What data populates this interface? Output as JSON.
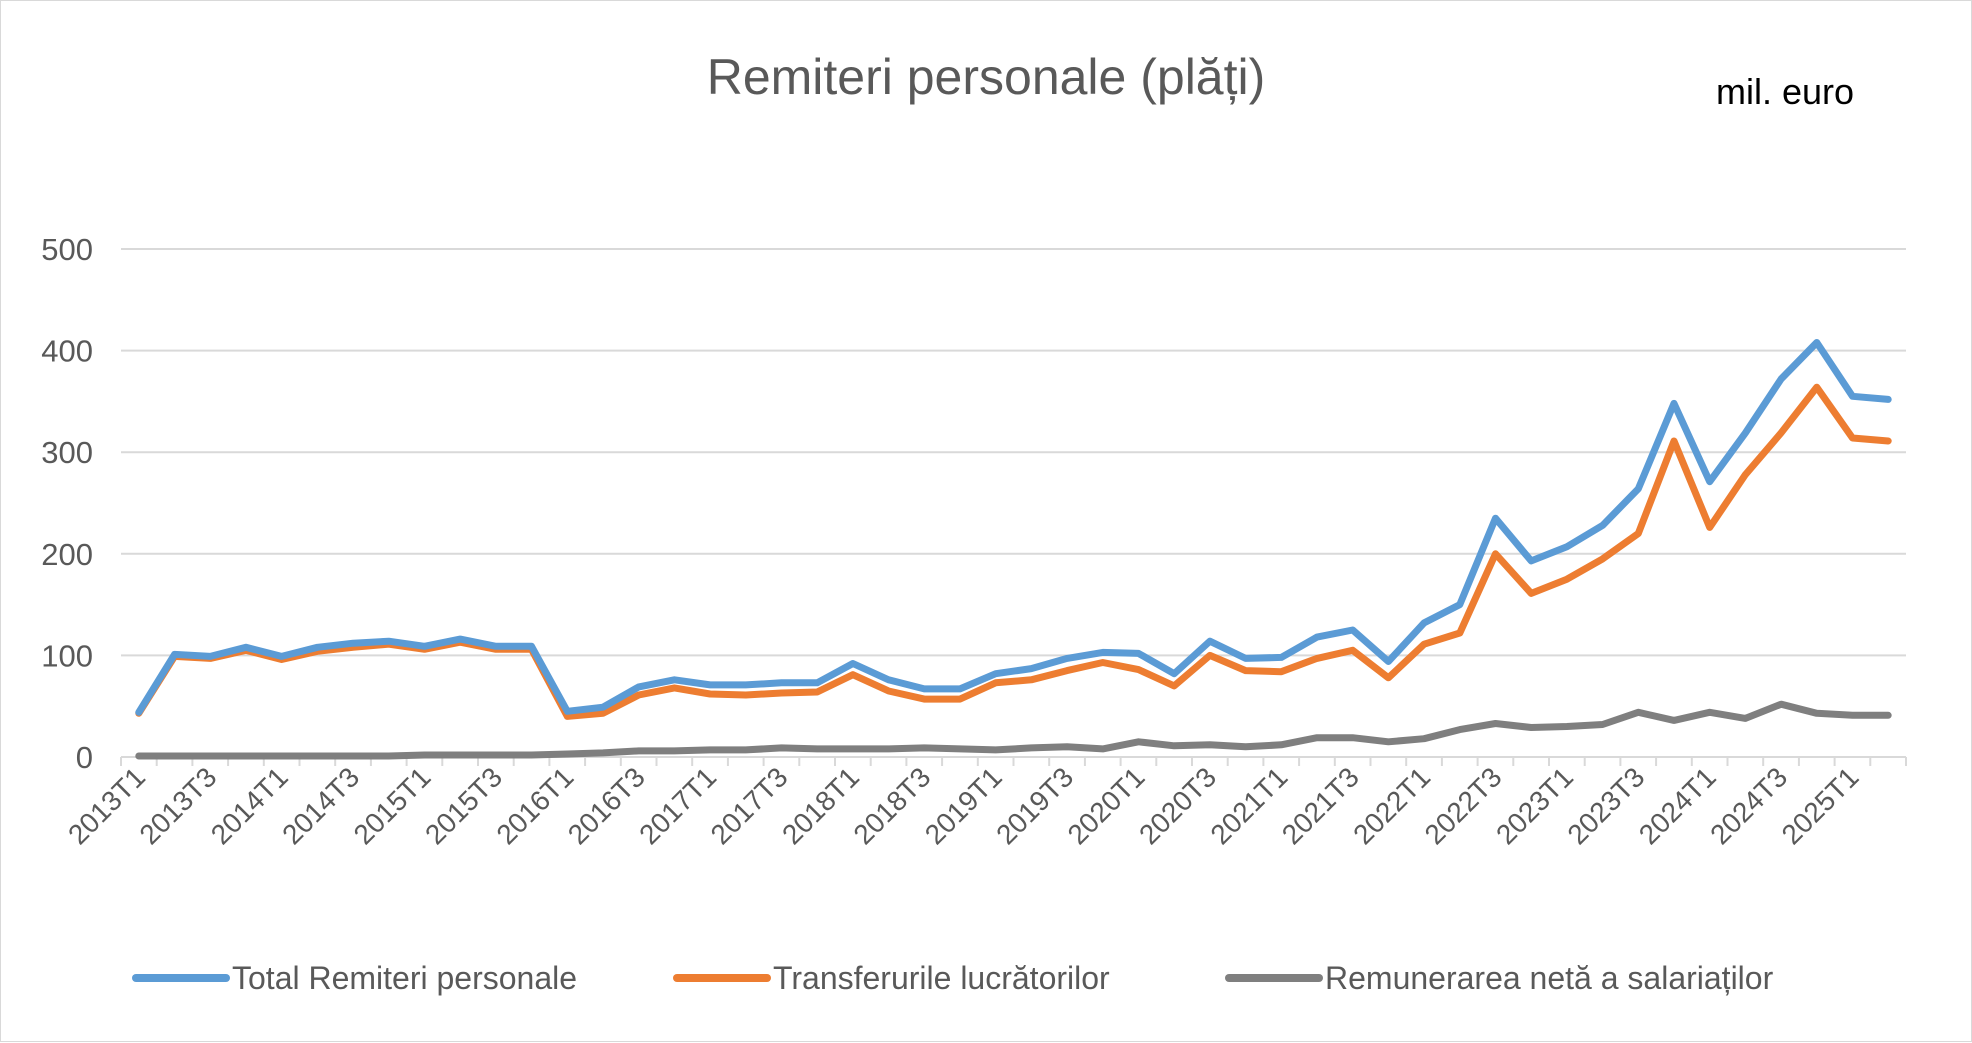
{
  "chart_data": {
    "type": "line",
    "title": "Remiteri personale (plăți)",
    "unit_label": "mil. euro",
    "xlabel": "",
    "ylabel": "",
    "ylim": [
      0,
      500
    ],
    "yticks": [
      "0",
      "100",
      "200",
      "300",
      "400",
      "500"
    ],
    "grid": true,
    "legend_position": "bottom",
    "categories": [
      "2013T1",
      "2013T2",
      "2013T3",
      "2013T4",
      "2014T1",
      "2014T2",
      "2014T3",
      "2014T4",
      "2015T1",
      "2015T2",
      "2015T3",
      "2015T4",
      "2016T1",
      "2016T2",
      "2016T3",
      "2016T4",
      "2017T1",
      "2017T2",
      "2017T3",
      "2017T4",
      "2018T1",
      "2018T2",
      "2018T3",
      "2018T4",
      "2019T1",
      "2019T2",
      "2019T3",
      "2019T4",
      "2020T1",
      "2020T2",
      "2020T3",
      "2020T4",
      "2021T1",
      "2021T2",
      "2021T3",
      "2021T4",
      "2022T1",
      "2022T2",
      "2022T3",
      "2022T4",
      "2023T1",
      "2023T2",
      "2023T3",
      "2023T4",
      "2024T1",
      "2024T2",
      "2024T3",
      "2024T4",
      "2025T1",
      "2025T2"
    ],
    "x_tick_labels": [
      "2013T1",
      "2013T3",
      "2014T1",
      "2014T3",
      "2015T1",
      "2015T3",
      "2016T1",
      "2016T3",
      "2017T1",
      "2017T3",
      "2018T1",
      "2018T3",
      "2019T1",
      "2019T3",
      "2020T1",
      "2020T3",
      "2021T1",
      "2021T3",
      "2022T1",
      "2022T3",
      "2023T1",
      "2023T3",
      "2024T1",
      "2024T3",
      "2025T1"
    ],
    "series": [
      {
        "name": "Total Remiteri personale",
        "color": "#5B9BD5",
        "values": [
          44,
          101,
          99,
          108,
          99,
          108,
          112,
          114,
          109,
          116,
          109,
          109,
          45,
          49,
          69,
          76,
          71,
          71,
          73,
          73,
          92,
          76,
          67,
          67,
          82,
          87,
          97,
          103,
          102,
          82,
          114,
          97,
          98,
          118,
          125,
          94,
          132,
          150,
          235,
          193,
          207,
          228,
          264,
          348,
          271,
          319,
          372,
          408,
          355,
          352
        ]
      },
      {
        "name": "Transferurile lucrătorilor",
        "color": "#ED7D31",
        "values": [
          43,
          99,
          97,
          105,
          96,
          104,
          108,
          111,
          106,
          113,
          106,
          106,
          40,
          43,
          61,
          68,
          62,
          61,
          63,
          64,
          81,
          65,
          57,
          57,
          73,
          76,
          85,
          93,
          86,
          70,
          100,
          85,
          84,
          97,
          105,
          78,
          111,
          122,
          200,
          161,
          175,
          195,
          220,
          311,
          226,
          278,
          319,
          364,
          314,
          311
        ]
      },
      {
        "name": "Remunerarea netă a salariaților",
        "color": "#7F7F7F",
        "values": [
          1,
          1,
          1,
          1,
          1,
          1,
          1,
          1,
          2,
          2,
          2,
          2,
          3,
          4,
          6,
          6,
          7,
          7,
          9,
          8,
          8,
          8,
          9,
          8,
          7,
          9,
          10,
          8,
          15,
          11,
          12,
          10,
          12,
          19,
          19,
          15,
          18,
          27,
          33,
          29,
          30,
          32,
          44,
          36,
          44,
          38,
          52,
          43,
          41,
          41
        ]
      }
    ]
  }
}
